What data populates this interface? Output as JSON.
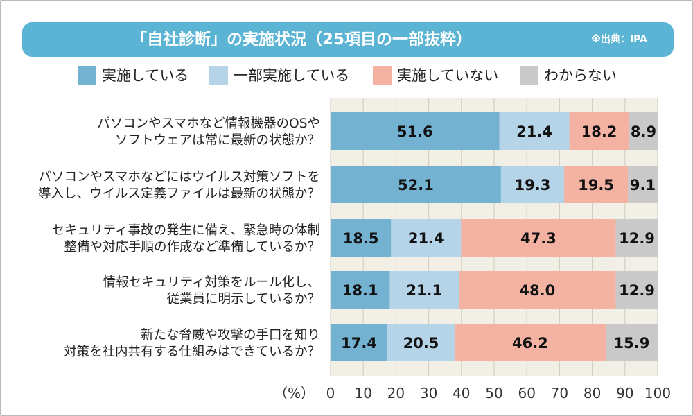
{
  "header": {
    "title": "「自社診断」の実施状況（25項目の一部抜粋）",
    "source": "※出典：IPA"
  },
  "colors": {
    "title_bar": "#5bb4d3",
    "plot_bg": "#f2efe6",
    "grid": "#d4cfc0"
  },
  "chart_data": {
    "type": "bar",
    "orientation": "horizontal",
    "stacked": true,
    "title": "「自社診断」の実施状況（25項目の一部抜粋）",
    "xlabel": "（%）",
    "ylabel": "",
    "xlim": [
      0,
      100
    ],
    "xticks": [
      0,
      10,
      20,
      30,
      40,
      50,
      60,
      70,
      80,
      90,
      100
    ],
    "grid": true,
    "legend_position": "top",
    "categories": [
      [
        "パソコンやスマホなど情報機器のOSや",
        "ソフトウェアは常に最新の状態か？"
      ],
      [
        "パソコンやスマホなどにはウイルス対策ソフトを",
        "導入し、ウイルス定義ファイルは最新の状態か？"
      ],
      [
        "セキュリティ事故の発生に備え、緊急時の体制",
        "整備や対応手順の作成など準備しているか？"
      ],
      [
        "情報セキュリティ対策をルール化し、",
        "従業員に明示しているか？"
      ],
      [
        "新たな脅威や攻撃の手口を知り",
        "対策を社内共有する仕組みはできているか？"
      ]
    ],
    "series": [
      {
        "name": "実施している",
        "color": "#74b2d2",
        "values": [
          51.6,
          52.1,
          18.5,
          18.1,
          17.4
        ],
        "labels": [
          "51.6",
          "52.1",
          "18.5",
          "18.1",
          "17.4"
        ]
      },
      {
        "name": "一部実施している",
        "color": "#b5d4e8",
        "values": [
          21.4,
          19.3,
          21.4,
          21.1,
          20.5
        ],
        "labels": [
          "21.4",
          "19.3",
          "21.4",
          "21.1",
          "20.5"
        ]
      },
      {
        "name": "実施していない",
        "color": "#f4b2a3",
        "values": [
          18.2,
          19.5,
          47.3,
          48.0,
          46.2
        ],
        "labels": [
          "18.2",
          "19.5",
          "47.3",
          "48.0",
          "46.2"
        ]
      },
      {
        "name": "わからない",
        "color": "#c9c9c9",
        "values": [
          8.9,
          9.1,
          12.9,
          12.9,
          15.9
        ],
        "labels": [
          "8.9",
          "9.1",
          "12.9",
          "12.9",
          "15.9"
        ]
      }
    ]
  }
}
